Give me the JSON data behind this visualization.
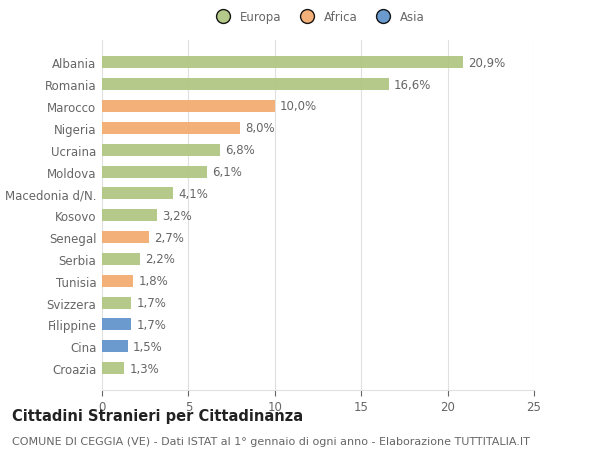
{
  "countries": [
    "Albania",
    "Romania",
    "Marocco",
    "Nigeria",
    "Ucraina",
    "Moldova",
    "Macedonia d/N.",
    "Kosovo",
    "Senegal",
    "Serbia",
    "Tunisia",
    "Svizzera",
    "Filippine",
    "Cina",
    "Croazia"
  ],
  "values": [
    20.9,
    16.6,
    10.0,
    8.0,
    6.8,
    6.1,
    4.1,
    3.2,
    2.7,
    2.2,
    1.8,
    1.7,
    1.7,
    1.5,
    1.3
  ],
  "labels": [
    "20,9%",
    "16,6%",
    "10,0%",
    "8,0%",
    "6,8%",
    "6,1%",
    "4,1%",
    "3,2%",
    "2,7%",
    "2,2%",
    "1,8%",
    "1,7%",
    "1,7%",
    "1,5%",
    "1,3%"
  ],
  "colors": [
    "#adc47d",
    "#adc47d",
    "#f2a96b",
    "#f2a96b",
    "#adc47d",
    "#adc47d",
    "#adc47d",
    "#adc47d",
    "#f2a96b",
    "#adc47d",
    "#f2a96b",
    "#adc47d",
    "#5b8fc9",
    "#5b8fc9",
    "#adc47d"
  ],
  "legend_labels": [
    "Europa",
    "Africa",
    "Asia"
  ],
  "legend_colors": [
    "#adc47d",
    "#f2a96b",
    "#5b8fc9"
  ],
  "title": "Cittadini Stranieri per Cittadinanza",
  "subtitle": "COMUNE DI CEGGIA (VE) - Dati ISTAT al 1° gennaio di ogni anno - Elaborazione TUTTITALIA.IT",
  "xlim": [
    0,
    25
  ],
  "xticks": [
    0,
    5,
    10,
    15,
    20,
    25
  ],
  "background_color": "#ffffff",
  "grid_color": "#e0e0e0",
  "bar_height": 0.55,
  "label_fontsize": 8.5,
  "tick_fontsize": 8.5,
  "title_fontsize": 10.5,
  "subtitle_fontsize": 8
}
